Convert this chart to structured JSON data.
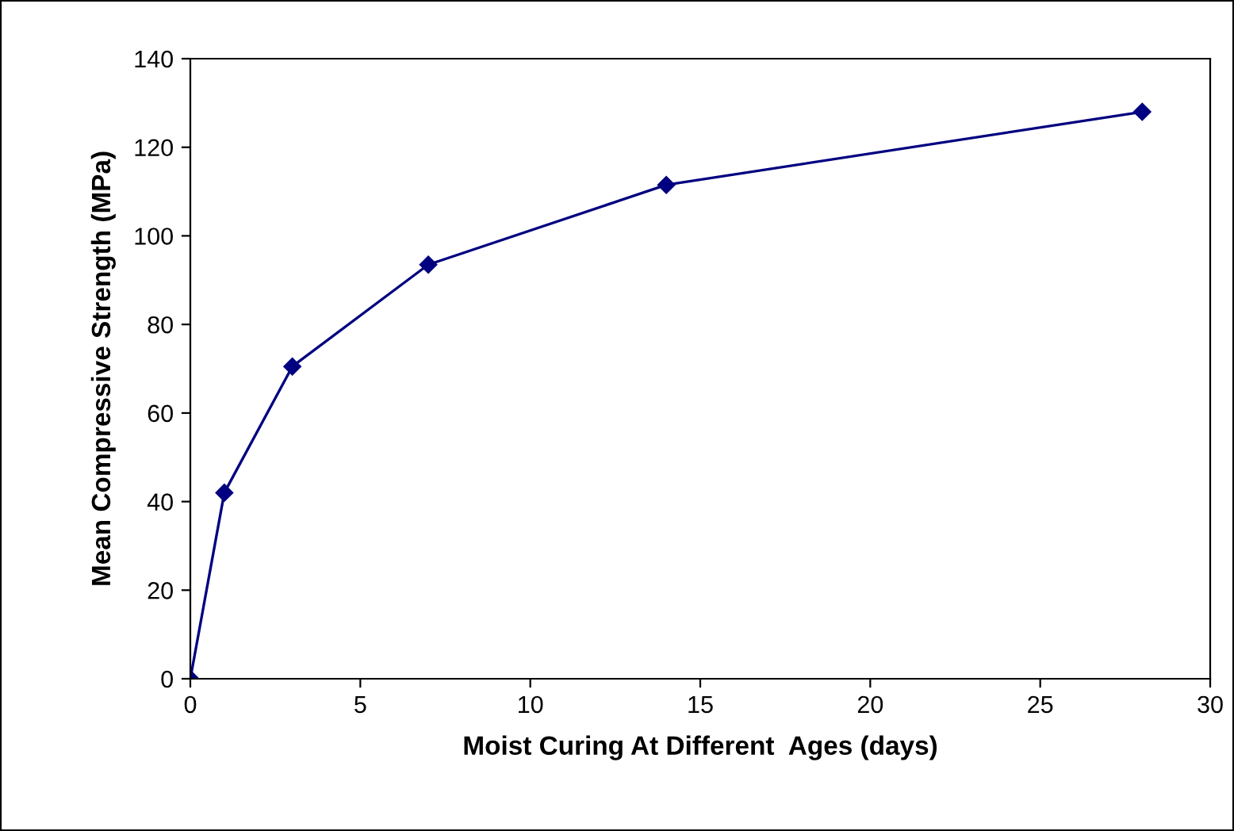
{
  "chart_data": {
    "type": "line",
    "xlabel": "Moist Curing At Different  Ages (days)",
    "ylabel": "Mean Compressive Strength (MPa)",
    "x": [
      0,
      1,
      3,
      7,
      14,
      28
    ],
    "series": [
      {
        "color": "#000080",
        "values": [
          0,
          42,
          70.5,
          93.5,
          111.5,
          128
        ]
      }
    ],
    "xlim": [
      0,
      30
    ],
    "xticks": [
      0,
      5,
      10,
      15,
      20,
      25,
      30
    ],
    "ylim": [
      0,
      140
    ],
    "yticks": [
      0,
      20,
      40,
      60,
      80,
      100,
      120,
      140
    ],
    "marker": "diamond",
    "line_style": "solid",
    "grid": false
  }
}
